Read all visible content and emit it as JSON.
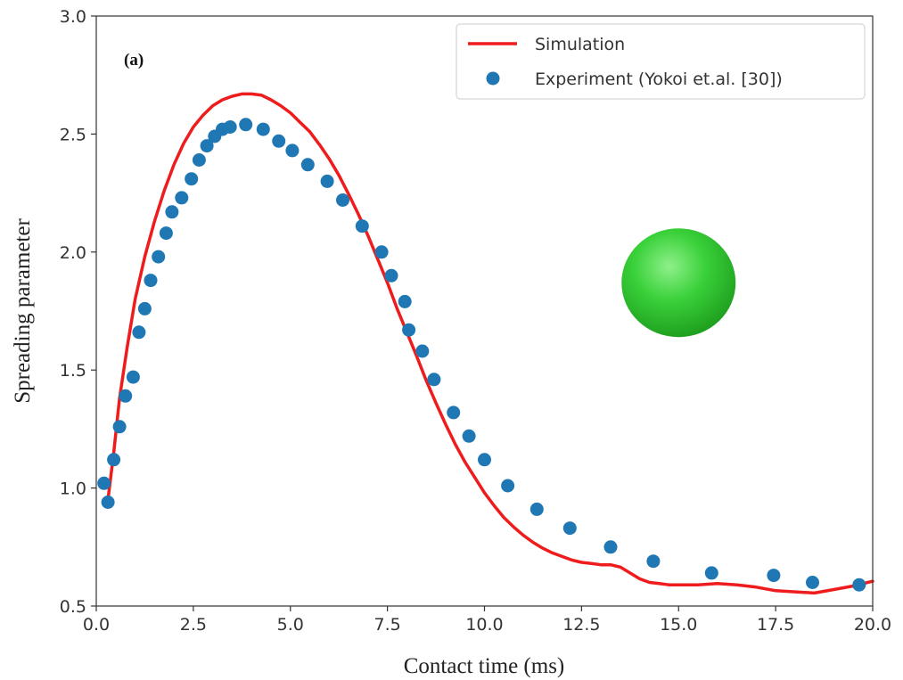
{
  "chart_data": {
    "type": "line",
    "panel_label": "(a)",
    "xlabel": "Contact time (ms)",
    "ylabel": "Spreading parameter",
    "xlim": [
      0.0,
      20.0
    ],
    "ylim": [
      0.5,
      3.0
    ],
    "x_ticks": [
      "0.0",
      "2.5",
      "5.0",
      "7.5",
      "10.0",
      "12.5",
      "15.0",
      "17.5",
      "20.0"
    ],
    "y_ticks": [
      "0.5",
      "1.0",
      "1.5",
      "2.0",
      "2.5",
      "3.0"
    ],
    "grid": false,
    "legend_position": "top-right",
    "series": [
      {
        "name": "Simulation",
        "style": "line",
        "color": "#ee1c1c",
        "x": [
          0.3,
          0.45,
          0.6,
          0.8,
          1.0,
          1.25,
          1.5,
          1.75,
          2.0,
          2.25,
          2.5,
          2.75,
          3.0,
          3.25,
          3.5,
          3.75,
          4.0,
          4.25,
          4.5,
          4.75,
          5.0,
          5.25,
          5.5,
          5.75,
          6.0,
          6.25,
          6.5,
          6.75,
          7.0,
          7.25,
          7.5,
          7.75,
          8.0,
          8.25,
          8.5,
          8.75,
          9.0,
          9.25,
          9.5,
          9.75,
          10.0,
          10.25,
          10.5,
          10.75,
          11.0,
          11.25,
          11.5,
          11.75,
          12.0,
          12.25,
          12.5,
          12.75,
          13.0,
          13.25,
          13.5,
          13.75,
          14.0,
          14.25,
          14.5,
          14.75,
          15.0,
          15.5,
          16.0,
          16.5,
          17.0,
          17.5,
          18.0,
          18.5,
          19.0,
          19.5,
          20.0
        ],
        "y": [
          0.95,
          1.15,
          1.38,
          1.6,
          1.8,
          1.98,
          2.13,
          2.26,
          2.37,
          2.46,
          2.53,
          2.58,
          2.62,
          2.645,
          2.66,
          2.67,
          2.67,
          2.665,
          2.645,
          2.62,
          2.59,
          2.55,
          2.51,
          2.455,
          2.395,
          2.325,
          2.245,
          2.16,
          2.07,
          1.97,
          1.87,
          1.76,
          1.66,
          1.56,
          1.455,
          1.36,
          1.27,
          1.185,
          1.11,
          1.045,
          0.98,
          0.925,
          0.875,
          0.835,
          0.8,
          0.77,
          0.745,
          0.725,
          0.71,
          0.695,
          0.685,
          0.68,
          0.675,
          0.675,
          0.665,
          0.64,
          0.615,
          0.6,
          0.595,
          0.59,
          0.59,
          0.59,
          0.595,
          0.59,
          0.58,
          0.565,
          0.56,
          0.555,
          0.57,
          0.585,
          0.605
        ]
      },
      {
        "name": "Experiment (Yokoi et.al. [30])",
        "style": "scatter",
        "color": "#1f77b4",
        "x": [
          0.2,
          0.3,
          0.45,
          0.6,
          0.75,
          0.95,
          1.1,
          1.25,
          1.4,
          1.6,
          1.8,
          1.95,
          2.2,
          2.45,
          2.65,
          2.85,
          3.05,
          3.25,
          3.45,
          3.85,
          4.3,
          4.7,
          5.05,
          5.45,
          5.95,
          6.35,
          6.85,
          7.35,
          7.6,
          7.95,
          8.05,
          8.4,
          8.7,
          9.2,
          9.6,
          10.0,
          10.6,
          11.35,
          12.2,
          13.25,
          14.35,
          15.85,
          17.45,
          18.45,
          19.65
        ],
        "y": [
          1.02,
          0.94,
          1.12,
          1.26,
          1.39,
          1.47,
          1.66,
          1.76,
          1.88,
          1.98,
          2.08,
          2.17,
          2.23,
          2.31,
          2.39,
          2.45,
          2.49,
          2.52,
          2.53,
          2.54,
          2.52,
          2.47,
          2.43,
          2.37,
          2.3,
          2.22,
          2.11,
          2.0,
          1.9,
          1.79,
          1.67,
          1.58,
          1.46,
          1.32,
          1.22,
          1.12,
          1.01,
          0.91,
          0.83,
          0.75,
          0.69,
          0.64,
          0.63,
          0.6,
          0.59
        ]
      }
    ],
    "annotation": {
      "type": "sphere",
      "color": "#3ad13a",
      "x": 15.0,
      "y": 1.87
    }
  }
}
